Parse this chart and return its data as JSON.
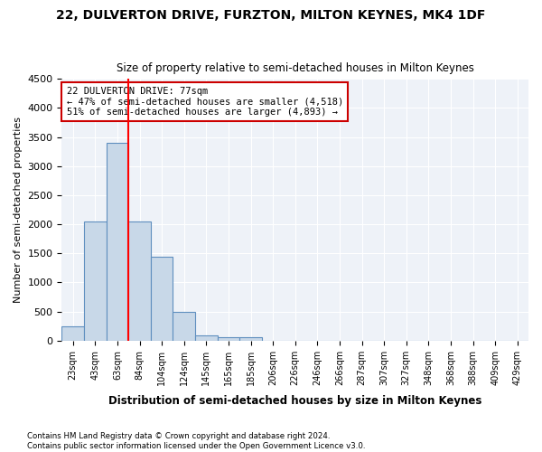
{
  "title": "22, DULVERTON DRIVE, FURZTON, MILTON KEYNES, MK4 1DF",
  "subtitle": "Size of property relative to semi-detached houses in Milton Keynes",
  "xlabel": "Distribution of semi-detached houses by size in Milton Keynes",
  "ylabel": "Number of semi-detached properties",
  "property_label": "22 DULVERTON DRIVE: 77sqm",
  "pct_smaller": 47,
  "pct_larger": 51,
  "n_smaller": 4518,
  "n_larger": 4893,
  "bin_labels": [
    "23sqm",
    "43sqm",
    "63sqm",
    "84sqm",
    "104sqm",
    "124sqm",
    "145sqm",
    "165sqm",
    "185sqm",
    "206sqm",
    "226sqm",
    "246sqm",
    "266sqm",
    "287sqm",
    "307sqm",
    "327sqm",
    "348sqm",
    "368sqm",
    "388sqm",
    "409sqm",
    "429sqm"
  ],
  "bar_values": [
    250,
    2050,
    3400,
    2050,
    1450,
    500,
    90,
    60,
    60,
    0,
    0,
    0,
    0,
    0,
    0,
    0,
    0,
    0,
    0,
    0,
    0
  ],
  "bar_color": "#c8d8e8",
  "bar_edge_color": "#5f8fbf",
  "red_line_x": 2.5,
  "ylim": [
    0,
    4500
  ],
  "yticks": [
    0,
    500,
    1000,
    1500,
    2000,
    2500,
    3000,
    3500,
    4000,
    4500
  ],
  "background_color": "#eef2f8",
  "annotation_box_color": "#cc0000",
  "footer_line1": "Contains HM Land Registry data © Crown copyright and database right 2024.",
  "footer_line2": "Contains public sector information licensed under the Open Government Licence v3.0."
}
